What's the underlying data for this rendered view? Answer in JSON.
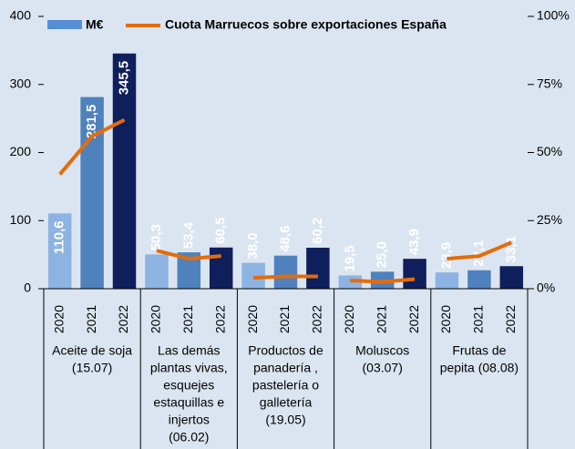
{
  "chart_data": {
    "type": "bar",
    "categories": [
      "2020",
      "2021",
      "2022",
      "2020",
      "2021",
      "2022",
      "2020",
      "2021",
      "2022",
      "2020",
      "2021",
      "2022",
      "2020",
      "2021",
      "2022"
    ],
    "groups": [
      {
        "lines": [
          "Aceite de soja",
          "(15.07)"
        ]
      },
      {
        "lines": [
          "Las demás",
          "plantas vivas,",
          "esquejes",
          "estaquillas e",
          "injertos",
          "(06.02)"
        ]
      },
      {
        "lines": [
          "Productos de",
          "panadería ,",
          "pastelería o",
          "galletería",
          "(19.05)"
        ]
      },
      {
        "lines": [
          "Moluscos",
          "(03.07)"
        ]
      },
      {
        "lines": [
          "Frutas de",
          "pepita (08.08)"
        ]
      }
    ],
    "series": [
      {
        "name": "M€",
        "color": "#558ed5",
        "colors": [
          "#8db3e2",
          "#4f81bd",
          "#0f1f5c",
          "#8db3e2",
          "#4f81bd",
          "#0f1f5c",
          "#8db3e2",
          "#4f81bd",
          "#0f1f5c",
          "#8db3e2",
          "#4f81bd",
          "#0f1f5c",
          "#8db3e2",
          "#4f81bd",
          "#0f1f5c"
        ],
        "values": [
          110.6,
          281.5,
          345.5,
          50.3,
          53.4,
          60.5,
          38.0,
          48.6,
          60.2,
          19.5,
          25.0,
          43.9,
          23.9,
          27.1,
          33.1
        ],
        "value_labels": [
          "110,6",
          "281,5",
          "345,5",
          "50,3",
          "53,4",
          "60,5",
          "38,0",
          "48,6",
          "60,2",
          "19,5",
          "25,0",
          "43,9",
          "23,9",
          "27,1",
          "33,1"
        ]
      },
      {
        "name": "Cuota Marruecos sobre exportaciones España",
        "color": "#e46c0a",
        "axis": "y2",
        "values": [
          42,
          56,
          62,
          14,
          11,
          12,
          4,
          4.5,
          4.5,
          3,
          2.5,
          3.5,
          11,
          12,
          17
        ]
      }
    ],
    "ylim": [
      0,
      400
    ],
    "yticks": [
      0,
      100,
      200,
      300,
      400
    ],
    "y2lim": [
      0,
      100
    ],
    "y2ticks": [
      {
        "value": 0,
        "label": "0%"
      },
      {
        "value": 25,
        "label": "25%"
      },
      {
        "value": 50,
        "label": "50%"
      },
      {
        "value": 75,
        "label": "75%"
      },
      {
        "value": 100,
        "label": "100%"
      }
    ],
    "legend": "top"
  }
}
